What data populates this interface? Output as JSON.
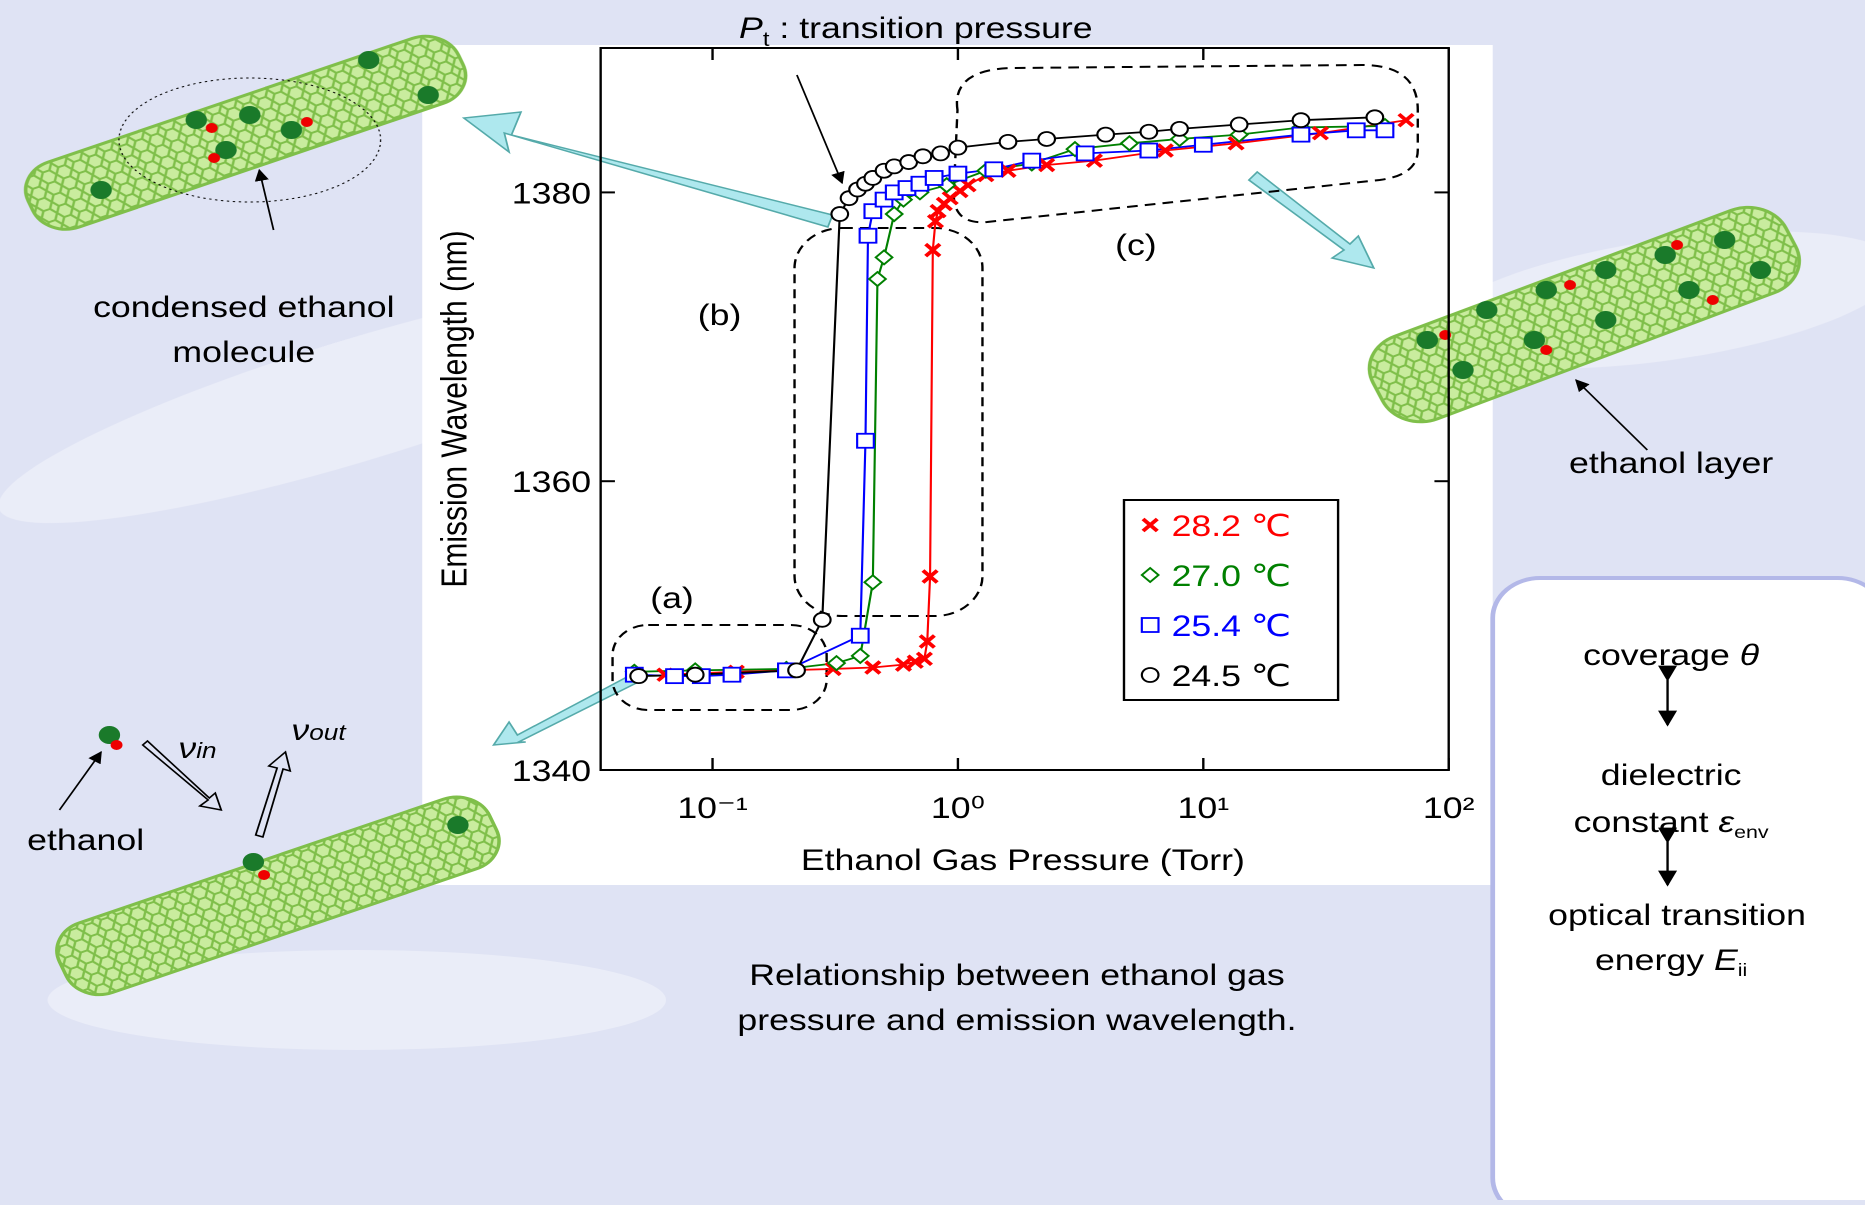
{
  "chart_data": {
    "type": "line",
    "xscale": "log",
    "x_label": "Ethanol Gas Pressure (Torr)",
    "y_label": "Emission Wavelength (nm)",
    "xlim": [
      0.035,
      100
    ],
    "xticks": [
      {
        "value": 0.1,
        "label": "10⁻¹"
      },
      {
        "value": 1,
        "label": "10⁰"
      },
      {
        "value": 10,
        "label": "10¹"
      },
      {
        "value": 100,
        "label": "10²"
      }
    ],
    "ylim": [
      1340,
      1390
    ],
    "yticks": [
      1340,
      1360,
      1380
    ],
    "legend": "lower right",
    "series": [
      {
        "name": "28.2 ℃",
        "color": "#ff0000",
        "marker": "x",
        "x": [
          0.064,
          0.125,
          0.31,
          0.45,
          0.6,
          0.67,
          0.73,
          0.75,
          0.77,
          0.79,
          0.81,
          0.83,
          0.88,
          0.93,
          1.02,
          1.1,
          1.3,
          1.6,
          2.3,
          3.6,
          7,
          13.6,
          30,
          67
        ],
        "values": [
          1346.6,
          1346.8,
          1347.0,
          1347.1,
          1347.3,
          1347.5,
          1347.7,
          1348.9,
          1353.4,
          1376.0,
          1378.0,
          1378.7,
          1379.2,
          1379.6,
          1380.1,
          1380.5,
          1381.2,
          1381.5,
          1381.9,
          1382.2,
          1382.9,
          1383.4,
          1384.1,
          1385.0
        ]
      },
      {
        "name": "27.0 ℃",
        "color": "#008000",
        "marker": "diamond",
        "x": [
          0.048,
          0.085,
          0.2,
          0.32,
          0.4,
          0.45,
          0.47,
          0.5,
          0.55,
          0.6,
          0.7,
          0.9,
          1.3,
          2,
          3,
          5,
          8,
          14,
          25,
          55
        ],
        "values": [
          1346.8,
          1346.9,
          1347.0,
          1347.4,
          1347.9,
          1353,
          1374,
          1375.5,
          1378.5,
          1379.5,
          1380,
          1380.5,
          1381.5,
          1382,
          1383,
          1383.4,
          1383.7,
          1384,
          1384.5,
          1384.6
        ]
      },
      {
        "name": "25.4 ℃",
        "color": "#0000ff",
        "marker": "square",
        "x": [
          0.048,
          0.07,
          0.09,
          0.12,
          0.2,
          0.4,
          0.42,
          0.43,
          0.45,
          0.5,
          0.55,
          0.62,
          0.7,
          0.8,
          1.0,
          1.4,
          2.0,
          3.3,
          6,
          10,
          25,
          42,
          55
        ],
        "values": [
          1346.6,
          1346.5,
          1346.5,
          1346.6,
          1346.9,
          1349.3,
          1362.8,
          1377,
          1378.7,
          1379.5,
          1380,
          1380.3,
          1380.6,
          1381,
          1381.3,
          1381.6,
          1382.2,
          1382.7,
          1382.9,
          1383.3,
          1384,
          1384.3,
          1384.3
        ]
      },
      {
        "name": "24.5 ℃",
        "color": "#000000",
        "marker": "circle",
        "x": [
          0.05,
          0.085,
          0.22,
          0.28,
          0.33,
          0.36,
          0.39,
          0.42,
          0.45,
          0.5,
          0.55,
          0.63,
          0.72,
          0.85,
          1.0,
          1.6,
          2.3,
          4,
          6,
          8,
          14,
          25,
          50
        ],
        "values": [
          1346.5,
          1346.6,
          1346.9,
          1350.4,
          1378.5,
          1379.6,
          1380.2,
          1380.6,
          1381,
          1381.5,
          1381.8,
          1382.1,
          1382.5,
          1382.7,
          1383.1,
          1383.5,
          1383.7,
          1384,
          1384.2,
          1384.4,
          1384.7,
          1385,
          1385.2
        ]
      }
    ],
    "annotations": {
      "pt_symbol": "P",
      "pt_sub": "t",
      "pt_text": " : transition pressure",
      "a": "(a)",
      "b": "(b)",
      "c": "(c)"
    },
    "caption": [
      "Relationship between ethanol gas",
      "pressure and emission wavelength."
    ]
  },
  "labels": {
    "condensed": [
      "condensed ethanol",
      "molecule"
    ],
    "layer": "ethanol layer",
    "ethanol": "ethanol",
    "v_in": "ν",
    "v_in_sub": "in",
    "v_out": "ν",
    "v_out_sub": "out",
    "box": {
      "coverage": "coverage ",
      "theta": "θ",
      "dielectric": "dielectric",
      "constant": "constant ",
      "eps": "ε",
      "eps_sub": "env",
      "optical": "optical transition",
      "energy": "energy ",
      "E": "E",
      "E_sub": "ii"
    }
  }
}
